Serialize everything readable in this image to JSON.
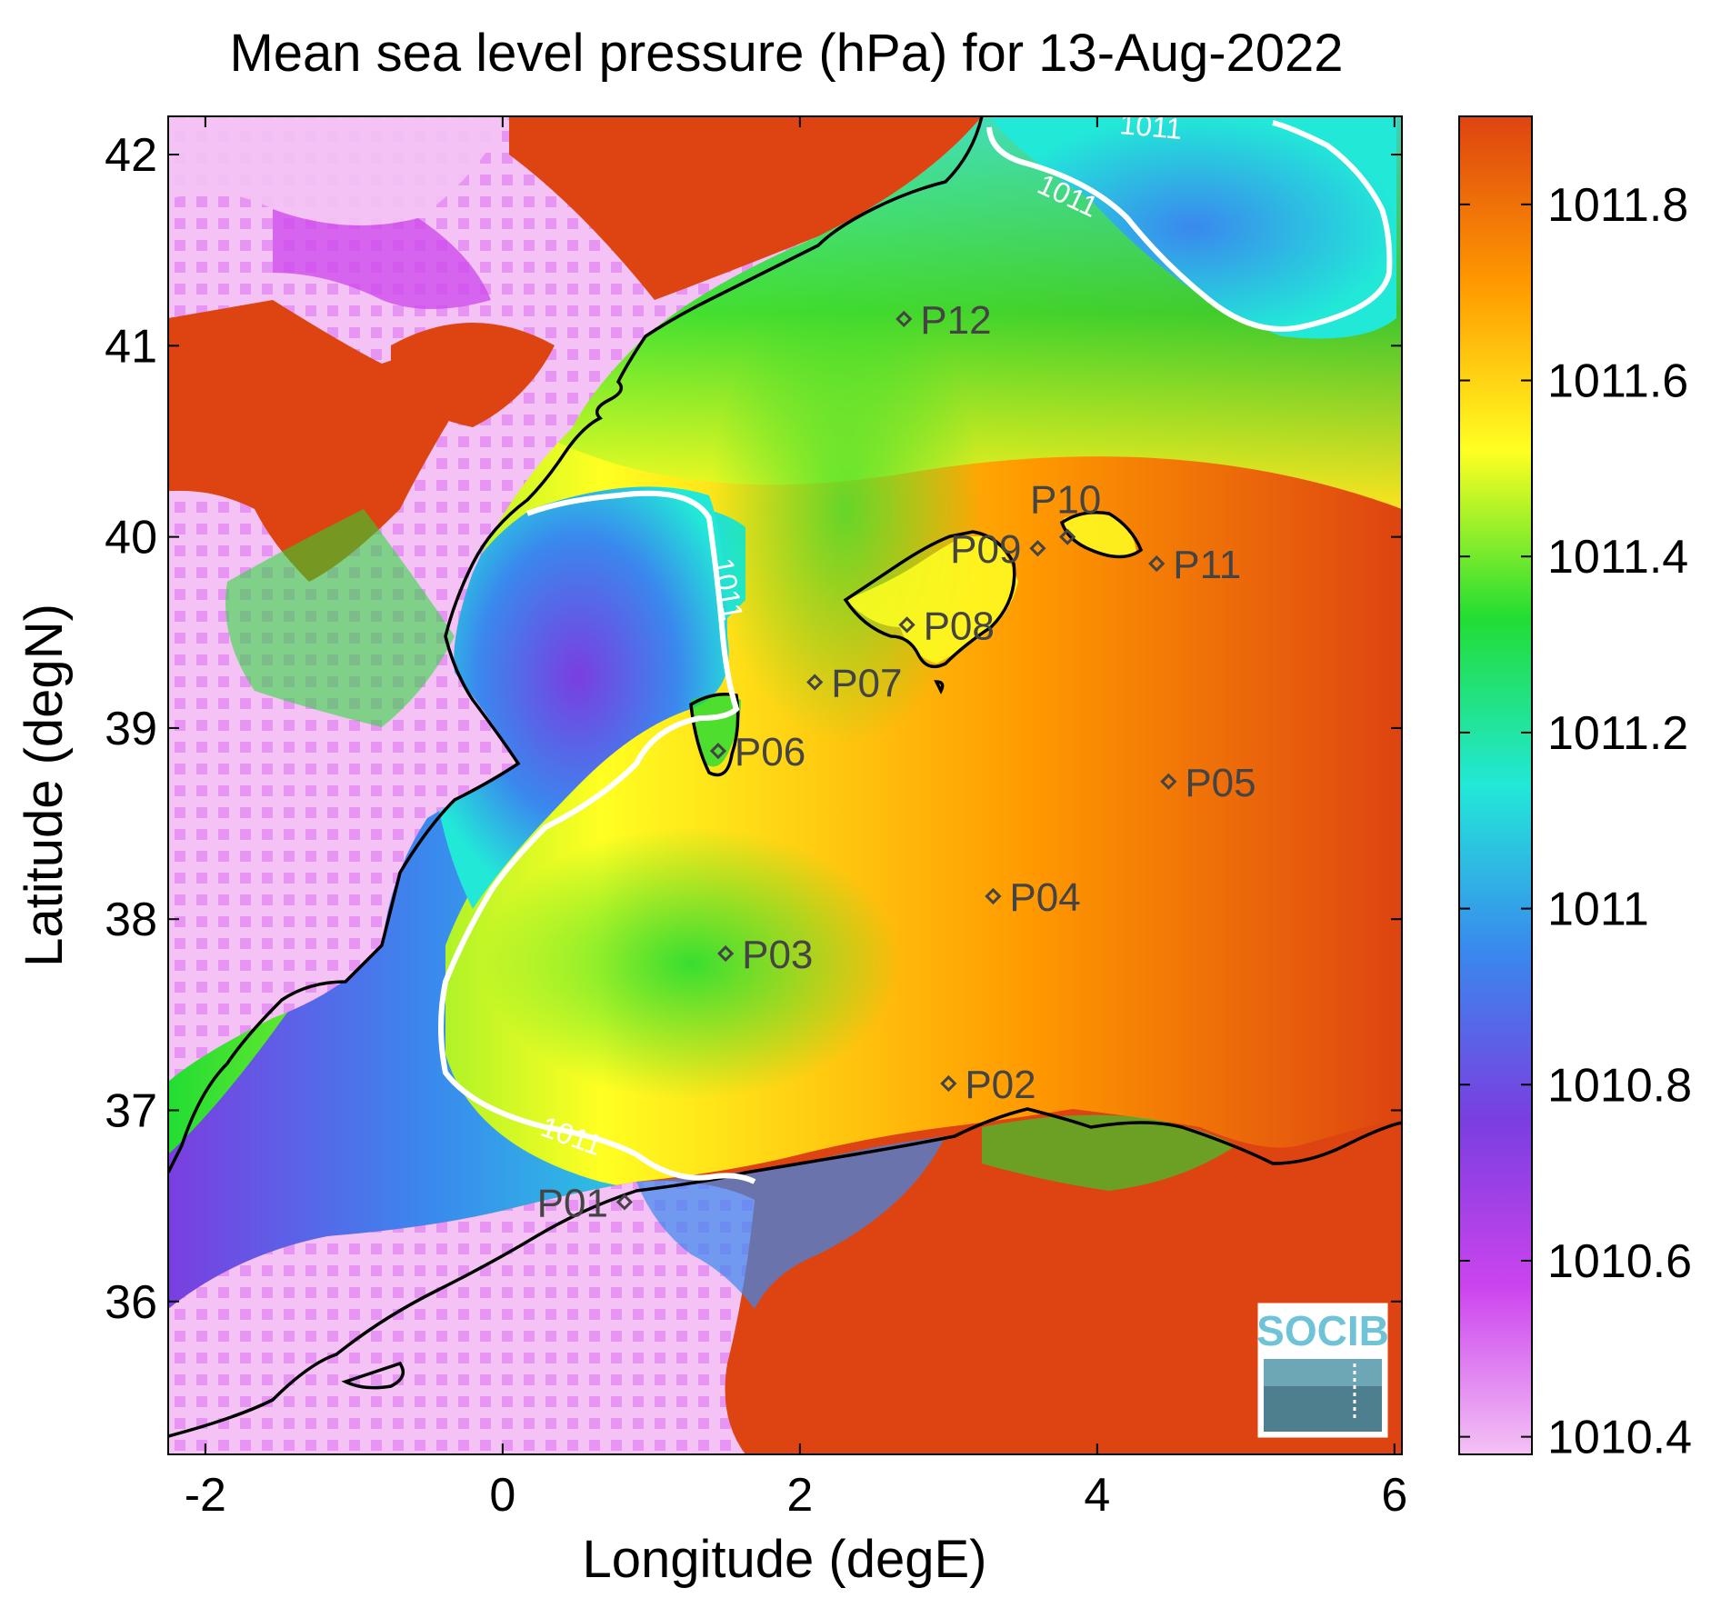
{
  "title": "Mean sea level pressure (hPa) for 13-Aug-2022",
  "x_axis": {
    "label": "Longitude (degE)",
    "range": [
      -2.25,
      6.05
    ],
    "ticks": [
      -2,
      0,
      2,
      4,
      6
    ],
    "tick_labels": [
      "-2",
      "0",
      "2",
      "4",
      "6"
    ]
  },
  "y_axis": {
    "label": "Latitude (degN)",
    "range": [
      35.2,
      42.2
    ],
    "ticks": [
      36,
      37,
      38,
      39,
      40,
      41,
      42
    ],
    "tick_labels": [
      "36",
      "37",
      "38",
      "39",
      "40",
      "41",
      "42"
    ]
  },
  "colorbar": {
    "min": 1010.38,
    "max": 1011.9,
    "ticks": [
      1010.4,
      1010.6,
      1010.8,
      1011,
      1011.2,
      1011.4,
      1011.6,
      1011.8
    ],
    "tick_labels": [
      "1010.4",
      "1010.6",
      "1010.8",
      "1011",
      "1011.2",
      "1011.4",
      "1011.6",
      "1011.8"
    ],
    "colors": [
      "#f4c2f4",
      "#cc44ee",
      "#7a3ee0",
      "#3a88ee",
      "#22e8d8",
      "#22dd33",
      "#ffff22",
      "#ff9900",
      "#dd4411"
    ]
  },
  "contours": {
    "level_label": "1011",
    "color": "#ffffff"
  },
  "stations": [
    {
      "id": "P01",
      "lon": 0.82,
      "lat": 36.52
    },
    {
      "id": "P02",
      "lon": 3.0,
      "lat": 37.14
    },
    {
      "id": "P03",
      "lon": 1.5,
      "lat": 37.82
    },
    {
      "id": "P04",
      "lon": 3.3,
      "lat": 38.12
    },
    {
      "id": "P05",
      "lon": 4.48,
      "lat": 38.72
    },
    {
      "id": "P06",
      "lon": 1.45,
      "lat": 38.88
    },
    {
      "id": "P07",
      "lon": 2.1,
      "lat": 39.24
    },
    {
      "id": "P08",
      "lon": 2.72,
      "lat": 39.54
    },
    {
      "id": "P09",
      "lon": 3.6,
      "lat": 39.94
    },
    {
      "id": "P10",
      "lon": 3.8,
      "lat": 40.0
    },
    {
      "id": "P11",
      "lon": 4.4,
      "lat": 39.86
    },
    {
      "id": "P12",
      "lon": 2.7,
      "lat": 41.14
    }
  ],
  "logo": {
    "text": "SOCIB"
  }
}
